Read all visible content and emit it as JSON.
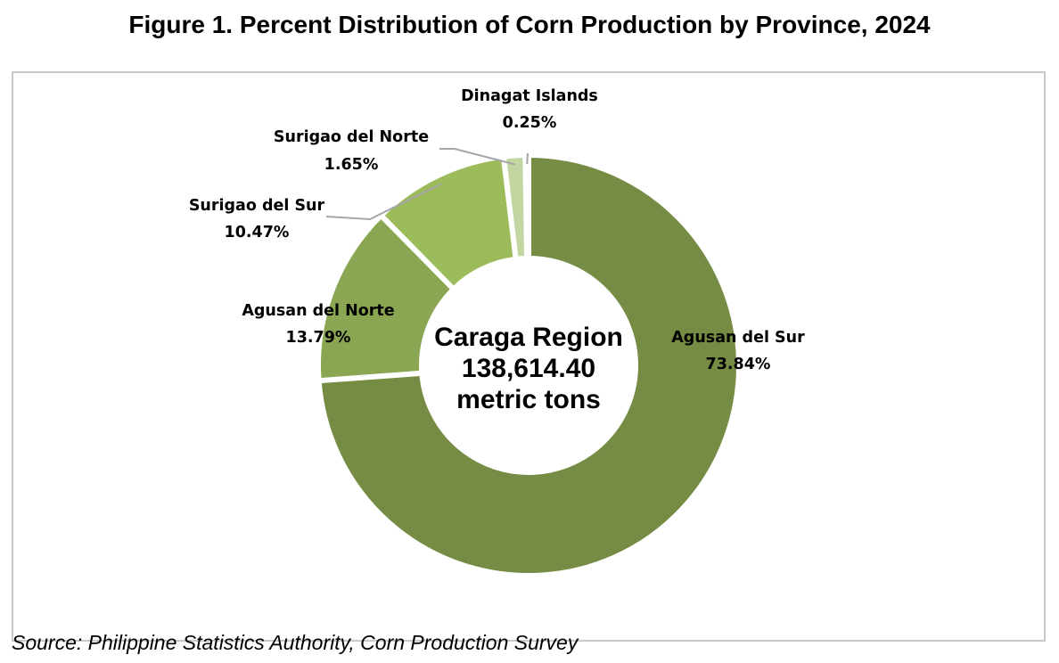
{
  "title": "Figure 1. Percent Distribution of Corn Production by Province, 2024",
  "source": "Source: Philippine Statistics Authority, Corn Production Survey",
  "chart_data": {
    "type": "pie",
    "donut": true,
    "center_text": [
      "Caraga Region",
      "138,614.40",
      "metric tons"
    ],
    "series": [
      {
        "name": "Agusan del Sur",
        "value": 73.84,
        "label": "73.84%",
        "color": "#768c44"
      },
      {
        "name": "Agusan del Norte",
        "value": 13.79,
        "label": "13.79%",
        "color": "#8aa652"
      },
      {
        "name": "Surigao del Sur",
        "value": 10.47,
        "label": "10.47%",
        "color": "#9cbb5a"
      },
      {
        "name": "Surigao del Norte",
        "value": 1.65,
        "label": "1.65%",
        "color": "#c3d6a2"
      },
      {
        "name": "Dinagat Islands",
        "value": 0.25,
        "label": "0.25%",
        "color": "#e2ecd2"
      }
    ],
    "leader_line_color": "#a6a6a6"
  }
}
